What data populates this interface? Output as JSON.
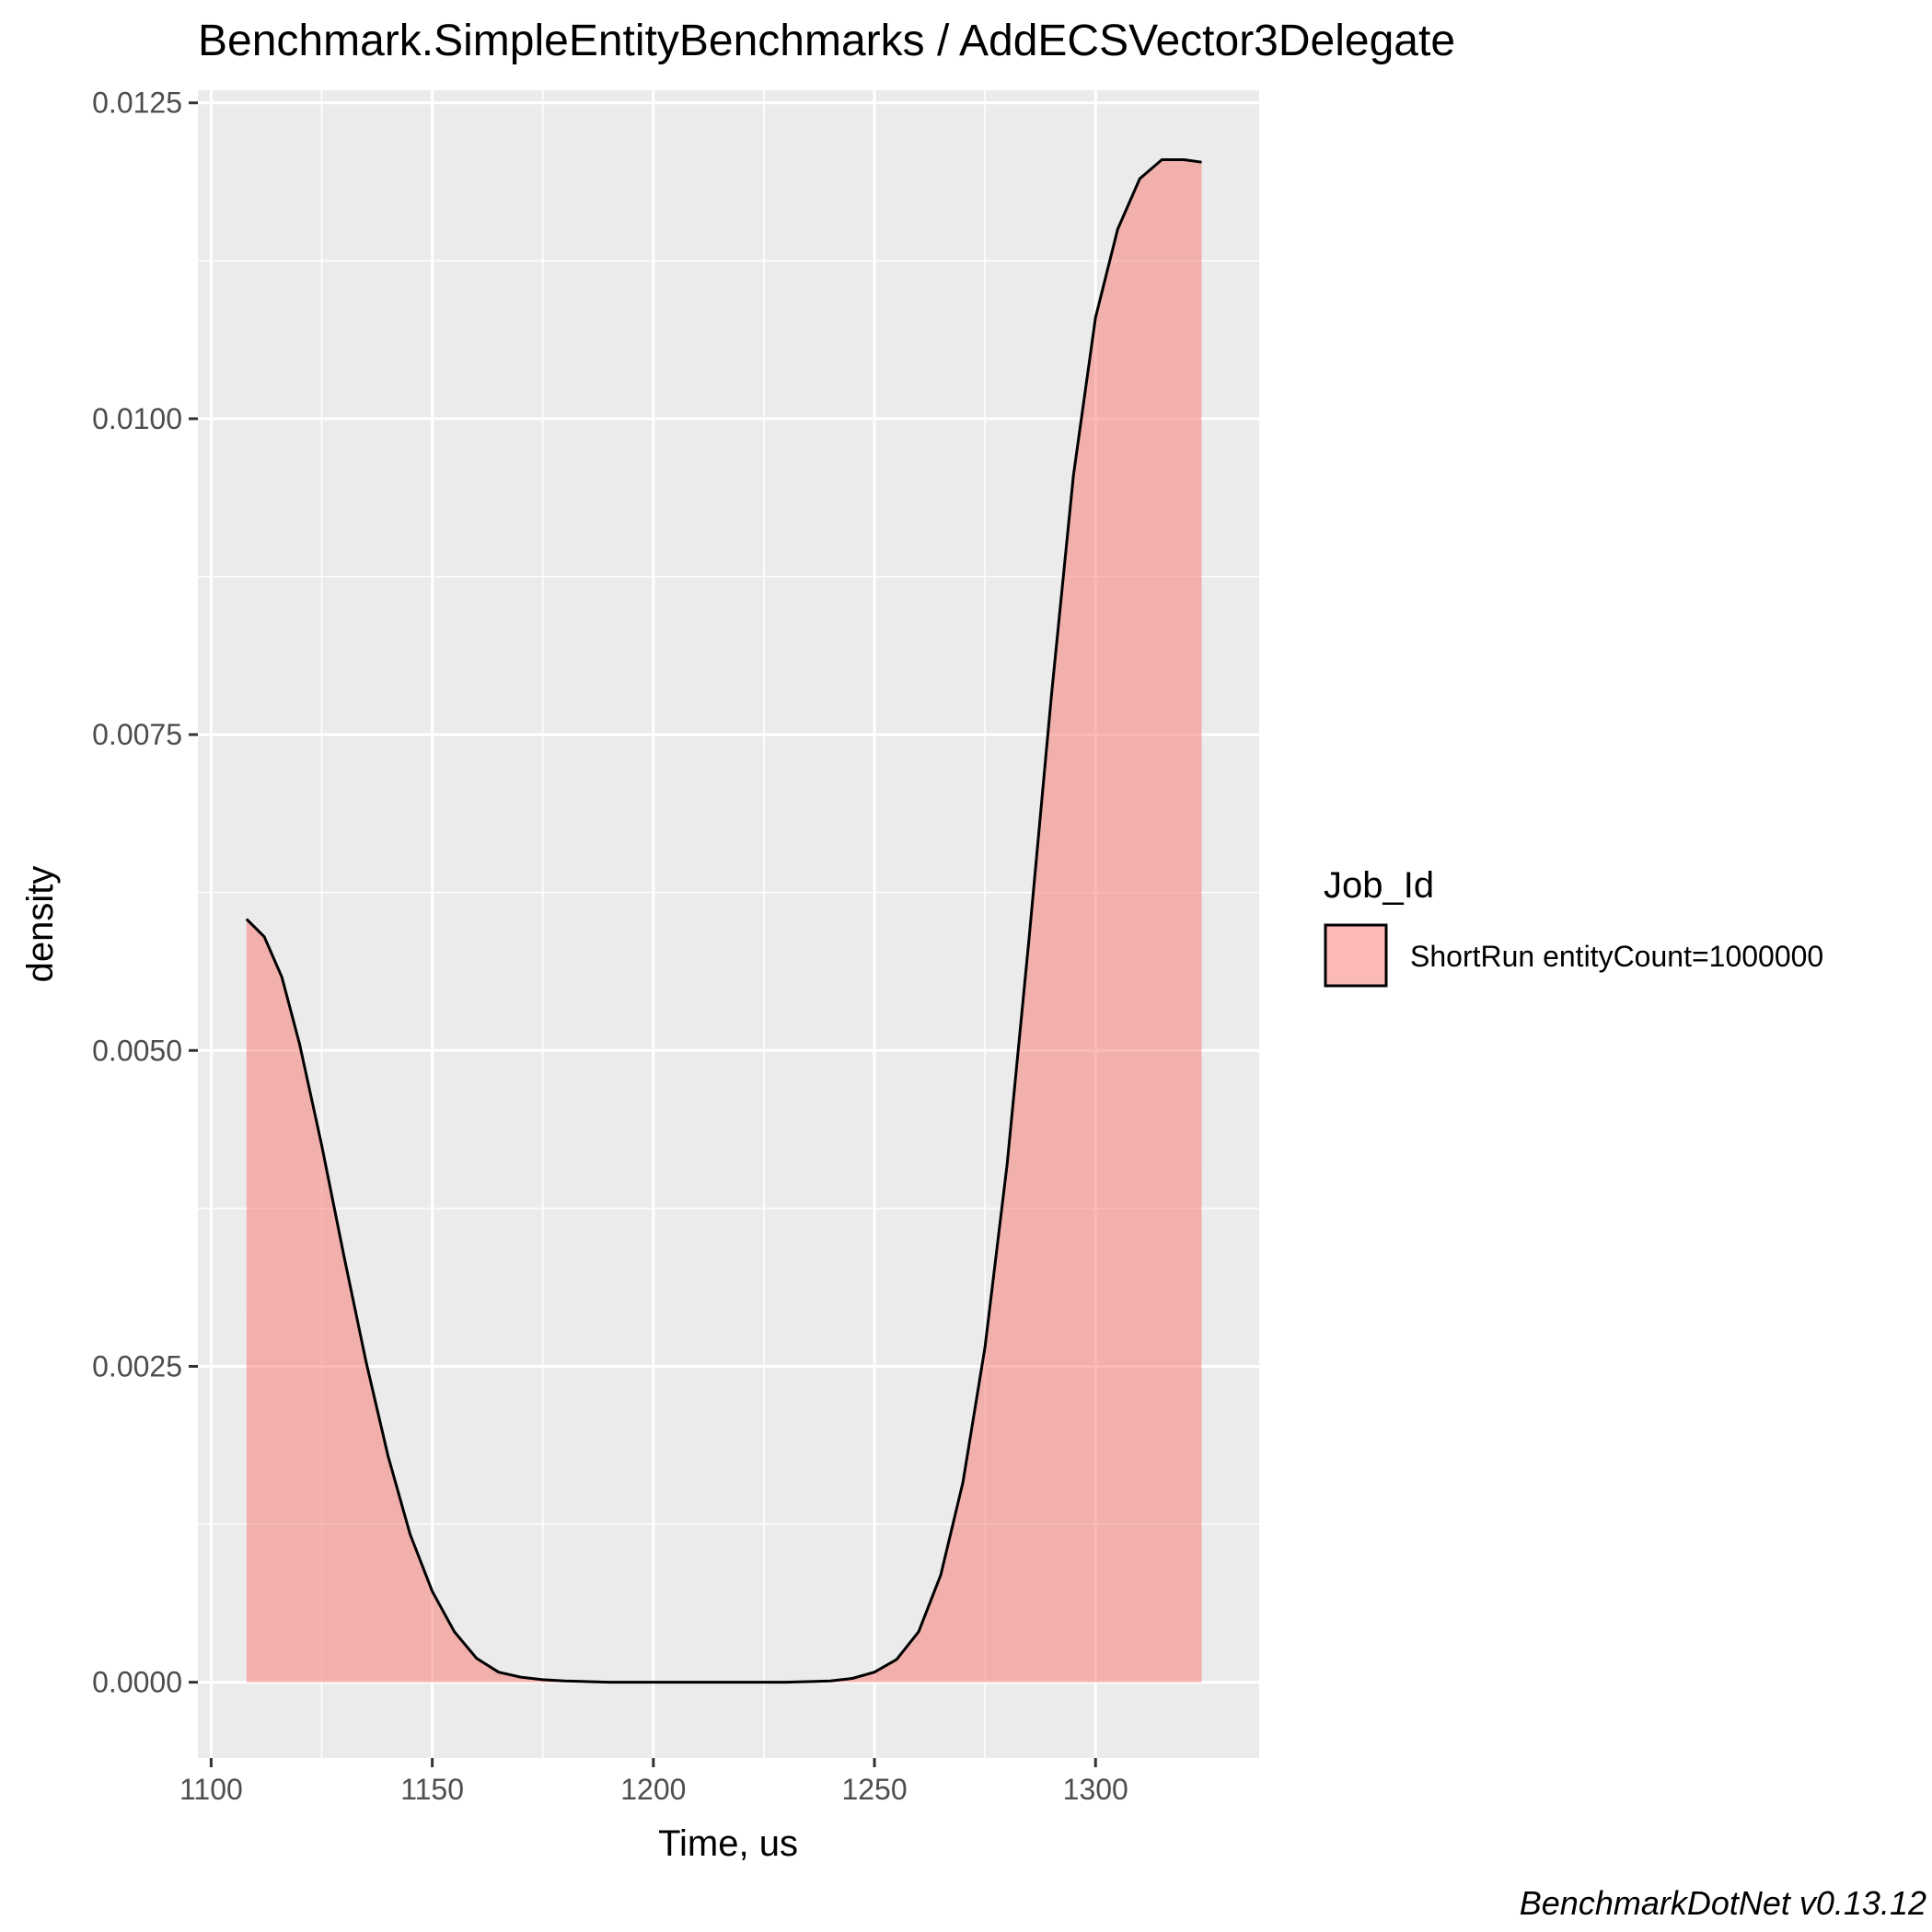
{
  "chart_data": {
    "type": "area",
    "title": "Benchmark.SimpleEntityBenchmarks / AddECSVector3Delegate",
    "xlabel": "Time, us",
    "ylabel": "density",
    "xlim": [
      1097,
      1337
    ],
    "ylim": [
      -0.0006,
      0.0126
    ],
    "x_ticks": [
      1100,
      1150,
      1200,
      1250,
      1300
    ],
    "x_tick_labels": [
      "1100",
      "1150",
      "1200",
      "1250",
      "1300"
    ],
    "y_ticks": [
      0,
      0.0025,
      0.005,
      0.0075,
      0.01,
      0.0125
    ],
    "y_tick_labels": [
      "0.0000",
      "0.0025",
      "0.0050",
      "0.0075",
      "0.0100",
      "0.0125"
    ],
    "grid": true,
    "legend": {
      "title": "Job_Id",
      "position": "right"
    },
    "series": [
      {
        "name": "ShortRun entityCount=1000000",
        "color": "#F8766D",
        "fill_opacity": 0.5,
        "x": [
          1108,
          1112,
          1116,
          1120,
          1125,
          1130,
          1135,
          1140,
          1145,
          1150,
          1155,
          1160,
          1165,
          1170,
          1175,
          1180,
          1190,
          1200,
          1210,
          1220,
          1230,
          1240,
          1245,
          1250,
          1255,
          1260,
          1265,
          1270,
          1275,
          1280,
          1285,
          1290,
          1295,
          1300,
          1305,
          1310,
          1315,
          1320,
          1324
        ],
        "y": [
          0.00604,
          0.0059,
          0.00558,
          0.00505,
          0.00425,
          0.00338,
          0.00254,
          0.00179,
          0.00117,
          0.00072,
          0.0004,
          0.00019,
          8e-05,
          4e-05,
          2e-05,
          1e-05,
          0.0,
          0.0,
          0.0,
          0.0,
          0.0,
          1e-05,
          3e-05,
          8e-05,
          0.00018,
          0.0004,
          0.00085,
          0.00158,
          0.00265,
          0.0041,
          0.0059,
          0.0078,
          0.00955,
          0.0108,
          0.0115,
          0.0119,
          0.01205,
          0.01205,
          0.01203
        ]
      }
    ]
  },
  "caption": "BenchmarkDotNet v0.13.12"
}
